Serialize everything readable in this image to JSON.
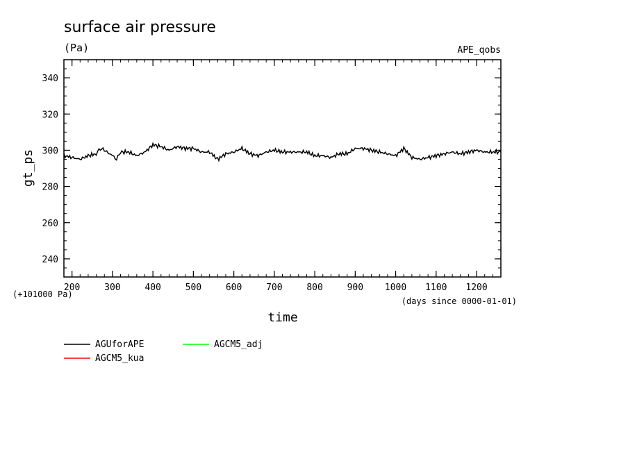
{
  "chart_data": {
    "type": "line",
    "title": "surface air pressure",
    "units": "(Pa)",
    "experiment": "APE_qobs",
    "ylabel": "gt_ps",
    "xlabel": "time",
    "x_units_note": "(days since 0000-01-01)",
    "y_offset_note": "(+101000 Pa)",
    "xlim": [
      180,
      1260
    ],
    "ylim": [
      230,
      350
    ],
    "x_ticks": [
      200,
      300,
      400,
      500,
      600,
      700,
      800,
      900,
      1000,
      1100,
      1200
    ],
    "y_ticks": [
      240,
      260,
      280,
      300,
      320,
      340
    ],
    "series": [
      {
        "name": "AGUforAPE",
        "color": "#000000",
        "x": [
          180,
          200,
          220,
          240,
          260,
          270,
          280,
          300,
          310,
          320,
          340,
          360,
          380,
          400,
          420,
          440,
          460,
          480,
          500,
          520,
          540,
          560,
          580,
          600,
          620,
          640,
          660,
          680,
          700,
          720,
          740,
          760,
          780,
          800,
          820,
          840,
          860,
          880,
          900,
          920,
          940,
          960,
          980,
          1000,
          1020,
          1040,
          1060,
          1080,
          1100,
          1120,
          1140,
          1160,
          1180,
          1200,
          1220,
          1240,
          1260
        ],
        "y": [
          297,
          296,
          295,
          297,
          298,
          301,
          300,
          297,
          295,
          299,
          299,
          297,
          299,
          303,
          302,
          300,
          302,
          301,
          301,
          299,
          299,
          295,
          298,
          299,
          301,
          298,
          297,
          299,
          300,
          299,
          299,
          299,
          299,
          297,
          297,
          296,
          298,
          298,
          301,
          301,
          300,
          299,
          298,
          297,
          301,
          296,
          295,
          296,
          297,
          298,
          299,
          298,
          299,
          300,
          299,
          299,
          299
        ]
      },
      {
        "name": "AGCM5_adj",
        "color": "#00ff00",
        "x": [],
        "y": []
      },
      {
        "name": "AGCM5_kua",
        "color": "#ff0000",
        "x": [],
        "y": []
      }
    ]
  }
}
